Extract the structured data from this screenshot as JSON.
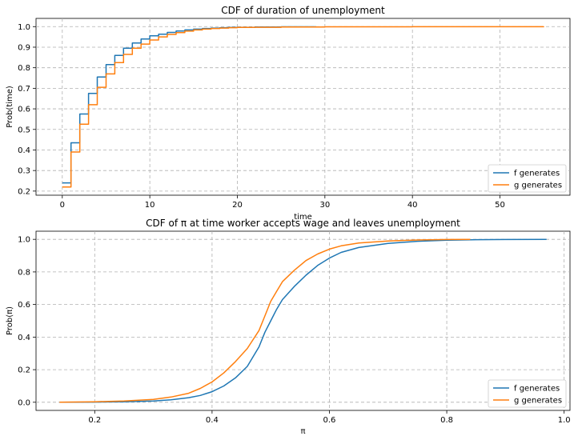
{
  "chart_data": [
    {
      "type": "line",
      "title": "CDF of duration of unemployment",
      "xlabel": "time",
      "ylabel": "Prob(time)",
      "xlim": [
        -3,
        58
      ],
      "ylim": [
        0.18,
        1.04
      ],
      "xticks": [
        0,
        10,
        20,
        30,
        40,
        50
      ],
      "yticks": [
        0.2,
        0.3,
        0.4,
        0.5,
        0.6,
        0.7,
        0.8,
        0.9,
        1.0
      ],
      "xtick_labels": [
        "0",
        "10",
        "20",
        "30",
        "40",
        "50"
      ],
      "ytick_labels": [
        "0.2",
        "0.3",
        "0.4",
        "0.5",
        "0.6",
        "0.7",
        "0.8",
        "0.9",
        "1.0"
      ],
      "grid": true,
      "legend_position": "lower-right",
      "step": true,
      "series": [
        {
          "name": "f generates",
          "color": "#1f77b4",
          "x": [
            0,
            1,
            2,
            3,
            4,
            5,
            6,
            7,
            8,
            9,
            10,
            11,
            12,
            13,
            14,
            15,
            16,
            17,
            18,
            19,
            20,
            22,
            25,
            29
          ],
          "y": [
            0.24,
            0.435,
            0.575,
            0.675,
            0.755,
            0.815,
            0.86,
            0.895,
            0.92,
            0.94,
            0.955,
            0.963,
            0.972,
            0.979,
            0.984,
            0.988,
            0.991,
            0.993,
            0.995,
            0.996,
            0.997,
            0.998,
            0.999,
            1.0
          ]
        },
        {
          "name": "g generates",
          "color": "#ff7f0e",
          "x": [
            0,
            1,
            2,
            3,
            4,
            5,
            6,
            7,
            8,
            9,
            10,
            11,
            12,
            13,
            14,
            15,
            16,
            17,
            18,
            19,
            20,
            22,
            25,
            30,
            40,
            55
          ],
          "y": [
            0.22,
            0.39,
            0.525,
            0.62,
            0.705,
            0.77,
            0.825,
            0.865,
            0.895,
            0.915,
            0.935,
            0.95,
            0.962,
            0.971,
            0.978,
            0.984,
            0.988,
            0.991,
            0.993,
            0.995,
            0.996,
            0.997,
            0.998,
            0.999,
            0.9995,
            1.0
          ]
        }
      ]
    },
    {
      "type": "line",
      "title": "CDF of π at time worker accepts wage and leaves unemployment",
      "xlabel": "π",
      "ylabel": "Prob(π)",
      "xlim": [
        0.1,
        1.01
      ],
      "ylim": [
        -0.05,
        1.05
      ],
      "xticks": [
        0.2,
        0.4,
        0.6,
        0.8,
        1.0
      ],
      "yticks": [
        0.0,
        0.2,
        0.4,
        0.6,
        0.8,
        1.0
      ],
      "xtick_labels": [
        "0.2",
        "0.4",
        "0.6",
        "0.8",
        "1.0"
      ],
      "ytick_labels": [
        "0.0",
        "0.2",
        "0.4",
        "0.6",
        "0.8",
        "1.0"
      ],
      "grid": true,
      "legend_position": "lower-right",
      "step": false,
      "series": [
        {
          "name": "f generates",
          "color": "#1f77b4",
          "x": [
            0.14,
            0.2,
            0.25,
            0.3,
            0.33,
            0.36,
            0.38,
            0.4,
            0.42,
            0.44,
            0.46,
            0.48,
            0.49,
            0.5,
            0.51,
            0.52,
            0.54,
            0.56,
            0.58,
            0.6,
            0.62,
            0.65,
            0.7,
            0.75,
            0.8,
            0.85,
            0.9,
            0.97
          ],
          "y": [
            0.0,
            0.001,
            0.003,
            0.008,
            0.015,
            0.028,
            0.042,
            0.065,
            0.1,
            0.15,
            0.22,
            0.34,
            0.43,
            0.5,
            0.57,
            0.63,
            0.71,
            0.78,
            0.84,
            0.885,
            0.92,
            0.95,
            0.975,
            0.988,
            0.995,
            0.998,
            0.999,
            1.0
          ]
        },
        {
          "name": "g generates",
          "color": "#ff7f0e",
          "x": [
            0.14,
            0.2,
            0.25,
            0.3,
            0.33,
            0.36,
            0.38,
            0.4,
            0.42,
            0.44,
            0.46,
            0.48,
            0.49,
            0.5,
            0.51,
            0.52,
            0.54,
            0.56,
            0.58,
            0.6,
            0.62,
            0.65,
            0.7,
            0.75,
            0.8,
            0.84
          ],
          "y": [
            0.0,
            0.003,
            0.008,
            0.018,
            0.032,
            0.055,
            0.085,
            0.125,
            0.18,
            0.25,
            0.33,
            0.44,
            0.53,
            0.62,
            0.68,
            0.74,
            0.81,
            0.87,
            0.91,
            0.94,
            0.96,
            0.978,
            0.99,
            0.996,
            0.999,
            1.0
          ]
        }
      ]
    }
  ]
}
